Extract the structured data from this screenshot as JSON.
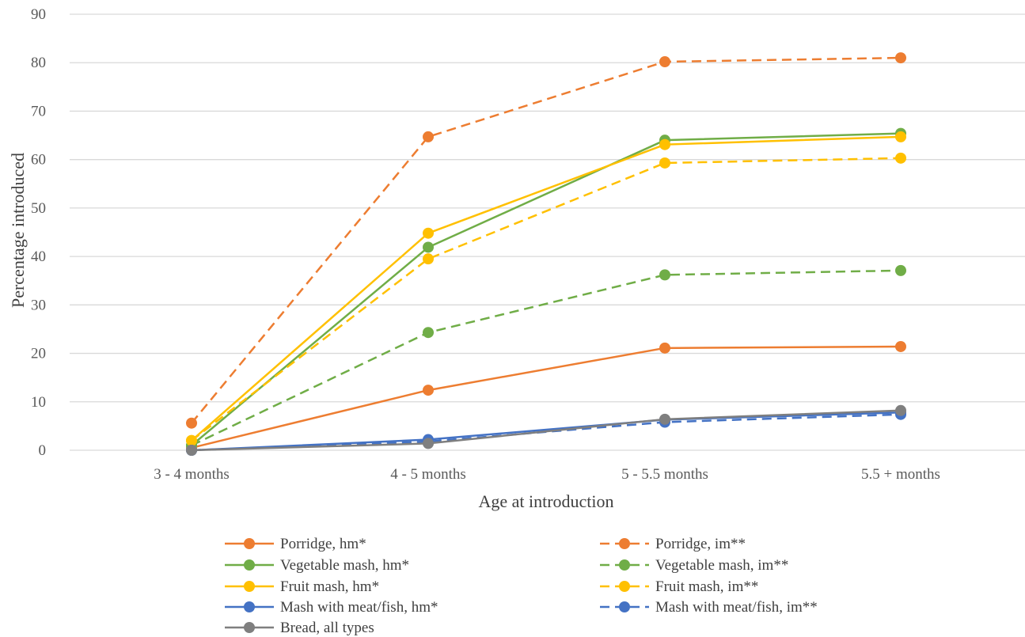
{
  "chart_data": {
    "type": "line",
    "title": "",
    "xlabel": "Age at introduction",
    "ylabel": "Percentage introduced",
    "categories": [
      "3 - 4 months",
      "4 - 5 months",
      "5 - 5.5 months",
      "5.5 +  months"
    ],
    "ylim": [
      0,
      90
    ],
    "yticks": [
      0,
      10,
      20,
      30,
      40,
      50,
      60,
      70,
      80,
      90
    ],
    "grid": true,
    "legend_position": "bottom",
    "series": [
      {
        "name": "Porridge, hm*",
        "color": "#ED7D31",
        "dashed": false,
        "values": [
          0.5,
          12.4,
          21.1,
          21.4
        ]
      },
      {
        "name": "Porridge, im**",
        "color": "#ED7D31",
        "dashed": true,
        "values": [
          5.6,
          64.7,
          80.2,
          81.0
        ]
      },
      {
        "name": "Vegetable mash, hm*",
        "color": "#70AD47",
        "dashed": false,
        "values": [
          1.0,
          41.9,
          64.0,
          65.4
        ]
      },
      {
        "name": "Vegetable mash, im**",
        "color": "#70AD47",
        "dashed": true,
        "values": [
          1.0,
          24.3,
          36.2,
          37.1
        ]
      },
      {
        "name": "Fruit mash, hm*",
        "color": "#FFC000",
        "dashed": false,
        "values": [
          2.0,
          44.8,
          63.1,
          64.7
        ]
      },
      {
        "name": "Fruit mash, im**",
        "color": "#FFC000",
        "dashed": true,
        "values": [
          2.0,
          39.5,
          59.3,
          60.3
        ]
      },
      {
        "name": "Mash with meat/fish, hm*",
        "color": "#4472C4",
        "dashed": false,
        "values": [
          0.0,
          2.2,
          6.3,
          7.8
        ]
      },
      {
        "name": "Mash with meat/fish, im**",
        "color": "#4472C4",
        "dashed": true,
        "values": [
          0.0,
          1.8,
          5.8,
          7.4
        ]
      },
      {
        "name": "Bread, all types",
        "color": "#7F7F7F",
        "dashed": false,
        "values": [
          0.0,
          1.4,
          6.4,
          8.2
        ]
      }
    ]
  }
}
